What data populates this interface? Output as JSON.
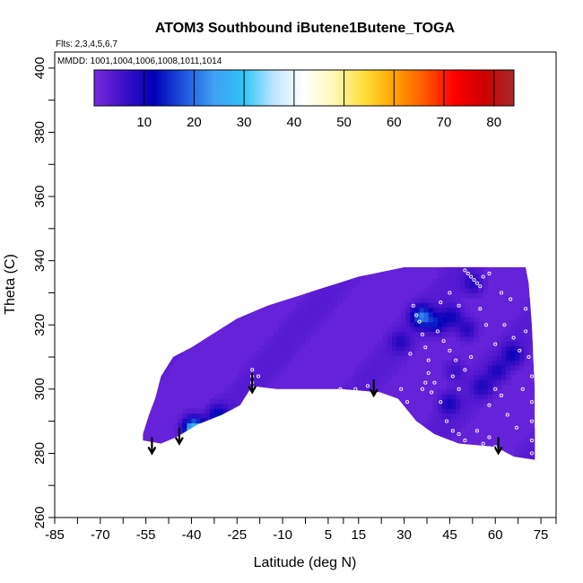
{
  "chart_data": {
    "type": "heatmap",
    "title": "ATOM3 Southbound iButene1Butene_TOGA",
    "notes": {
      "flights": "Flts: 2,3,4,5,6,7",
      "dates": "MMDD: 1001,1004,1006,1008,1011,1014"
    },
    "xlabel": "Latitude (deg N)",
    "ylabel": "Theta (C)",
    "xlim": [
      -85,
      80
    ],
    "ylim": [
      260,
      405
    ],
    "x_ticks": [
      -85,
      -70,
      -55,
      -40,
      -25,
      -10,
      5,
      15,
      30,
      45,
      60,
      75
    ],
    "y_ticks": [
      260,
      280,
      300,
      320,
      340,
      360,
      380,
      400
    ],
    "colorbar": {
      "min": 0,
      "max": 84,
      "ticks": [
        10,
        20,
        30,
        40,
        50,
        60,
        70,
        80
      ],
      "colors": [
        "#7a2be0",
        "#3c0fc8",
        "#0000b8",
        "#1f55e0",
        "#3fa0f5",
        "#2fc4f5",
        "#bfe6ff",
        "#ffffff",
        "#fff7b8",
        "#ffde3a",
        "#ffa500",
        "#ff5a00",
        "#ff0000",
        "#cc0000",
        "#a52a2a"
      ]
    },
    "field": {
      "background_value": 2,
      "upper_boundary": [
        [
          -56,
          286
        ],
        [
          -54,
          292
        ],
        [
          -52,
          297
        ],
        [
          -50,
          304
        ],
        [
          -46,
          310
        ],
        [
          -40,
          313
        ],
        [
          -35,
          316
        ],
        [
          -25,
          322
        ],
        [
          -15,
          326
        ],
        [
          -5,
          329
        ],
        [
          5,
          332
        ],
        [
          15,
          335
        ],
        [
          25,
          337
        ],
        [
          30,
          338
        ],
        [
          70,
          338
        ],
        [
          71,
          333
        ],
        [
          72,
          320
        ],
        [
          73,
          300
        ],
        [
          73,
          278
        ]
      ],
      "lower_boundary": [
        [
          -56,
          284
        ],
        [
          -50,
          283
        ],
        [
          -45,
          285
        ],
        [
          -38,
          289
        ],
        [
          -30,
          292
        ],
        [
          -24,
          295
        ],
        [
          -20,
          301
        ],
        [
          -12,
          300
        ],
        [
          0,
          300
        ],
        [
          10,
          300
        ],
        [
          22,
          299
        ],
        [
          28,
          297
        ],
        [
          34,
          290
        ],
        [
          40,
          286
        ],
        [
          48,
          283
        ],
        [
          60,
          282
        ],
        [
          66,
          279
        ],
        [
          73,
          278
        ]
      ],
      "hotspots": [
        {
          "lat": -40,
          "theta": 287,
          "value": 30
        },
        {
          "lat": -32,
          "theta": 291,
          "value": 12
        },
        {
          "lat": 35,
          "theta": 322,
          "value": 20
        },
        {
          "lat": 40,
          "theta": 320,
          "value": 12
        },
        {
          "lat": 45,
          "theta": 322,
          "value": 10
        },
        {
          "lat": 50,
          "theta": 318,
          "value": 8
        },
        {
          "lat": 60,
          "theta": 305,
          "value": 8
        },
        {
          "lat": 65,
          "theta": 310,
          "value": 10
        },
        {
          "lat": 55,
          "theta": 300,
          "value": 8
        },
        {
          "lat": 44,
          "theta": 295,
          "value": 9
        },
        {
          "lat": 52,
          "theta": 332,
          "value": 8
        },
        {
          "lat": 28,
          "theta": 314,
          "value": 7
        },
        {
          "lat": 46,
          "theta": 305,
          "value": 6
        }
      ]
    },
    "arrows": [
      {
        "lat": -53,
        "theta_top": 285,
        "theta_bottom": 280
      },
      {
        "lat": -44,
        "theta_top": 288,
        "theta_bottom": 283
      },
      {
        "lat": -20,
        "theta_top": 305,
        "theta_bottom": 299
      },
      {
        "lat": 20,
        "theta_top": 303,
        "theta_bottom": 298
      },
      {
        "lat": 61,
        "theta_top": 285,
        "theta_bottom": 280
      }
    ],
    "samples": [
      [
        -20,
        306
      ],
      [
        -20,
        304
      ],
      [
        -20,
        302
      ],
      [
        -18,
        304
      ],
      [
        14,
        300
      ],
      [
        9,
        300
      ],
      [
        18,
        301
      ],
      [
        27,
        295
      ],
      [
        26,
        293
      ],
      [
        25,
        292
      ],
      [
        32,
        311
      ],
      [
        33,
        326
      ],
      [
        34,
        323
      ],
      [
        35,
        321
      ],
      [
        36,
        317
      ],
      [
        37,
        313
      ],
      [
        38,
        309
      ],
      [
        38,
        305
      ],
      [
        37,
        302
      ],
      [
        39,
        299
      ],
      [
        42,
        296
      ],
      [
        36,
        300
      ],
      [
        41,
        318
      ],
      [
        43,
        315
      ],
      [
        45,
        312
      ],
      [
        47,
        309
      ],
      [
        46,
        304
      ],
      [
        48,
        300
      ],
      [
        50,
        306
      ],
      [
        52,
        310
      ],
      [
        44,
        290
      ],
      [
        46,
        287
      ],
      [
        48,
        286
      ],
      [
        50,
        284
      ],
      [
        54,
        287
      ],
      [
        56,
        283
      ],
      [
        58,
        285
      ],
      [
        60,
        282
      ],
      [
        50,
        337
      ],
      [
        51,
        336
      ],
      [
        52,
        335
      ],
      [
        53,
        334
      ],
      [
        54,
        333
      ],
      [
        55,
        332
      ],
      [
        56,
        335
      ],
      [
        58,
        336
      ],
      [
        62,
        330
      ],
      [
        65,
        328
      ],
      [
        63,
        320
      ],
      [
        66,
        316
      ],
      [
        68,
        312
      ],
      [
        70,
        318
      ],
      [
        71,
        310
      ],
      [
        72,
        304
      ],
      [
        72,
        296
      ],
      [
        72,
        290
      ],
      [
        72,
        284
      ],
      [
        72,
        280
      ],
      [
        62,
        298
      ],
      [
        60,
        300
      ],
      [
        58,
        295
      ],
      [
        64,
        292
      ],
      [
        40,
        302
      ],
      [
        33,
        290
      ],
      [
        31,
        296
      ],
      [
        45,
        330
      ],
      [
        48,
        326
      ],
      [
        42,
        327
      ],
      [
        29,
        300
      ],
      [
        70,
        325
      ],
      [
        69,
        300
      ],
      [
        67,
        288
      ],
      [
        55,
        325
      ],
      [
        57,
        320
      ],
      [
        60,
        314
      ]
    ]
  }
}
